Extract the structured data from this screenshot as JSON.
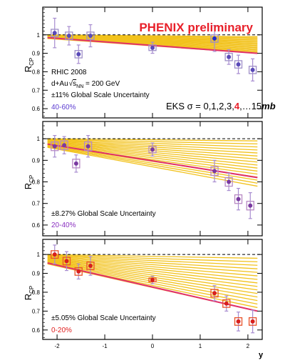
{
  "header": {
    "title": "PHENIX preliminary"
  },
  "colors": {
    "title": "#e8202a",
    "band": "#f2c21c",
    "fit": "#e0306a",
    "stat_error": "#a78cd0",
    "sys_box_top": "#9f8fc8",
    "sys_box_mid": "#b88ac4",
    "sys_box_bot": "#e9522a",
    "marker_top": "#5a4ab8",
    "marker_mid": "#7a3aa0",
    "marker_bot": "#d8201c",
    "cent_top": "#5a3ad0",
    "cent_mid": "#8a2fc0",
    "cent_bot": "#e02020",
    "highlight_marker": "#1c2bd0"
  },
  "annotations": {
    "run": "RHIC 2008",
    "system_prefix": "d+Au",
    "system_sqrt": "s",
    "system_sub": "NN",
    "system_suffix": " = 200 GeV",
    "eks_prefix": "EKS σ = 0,1,2,3,",
    "eks_highlight": "4",
    "eks_suffix": ",…15",
    "eks_unit": "mb"
  },
  "chart_data": [
    {
      "type": "scatter",
      "ylabel_main": "R",
      "ylabel_sub": "CP",
      "xlim": [
        -2.3,
        2.3
      ],
      "ylim": [
        0.55,
        1.15
      ],
      "yticks": [
        0.6,
        0.7,
        0.8,
        0.9,
        1.0
      ],
      "ytick_labels": [
        "0.6",
        "0.7",
        "0.8",
        "0.9",
        "1"
      ],
      "reference_line": 1.0,
      "global_uncertainty": "±11% Global Scale Uncertainty",
      "centrality": "40-60%",
      "fit_line": {
        "x": [
          -2.2,
          2.2
        ],
        "y": [
          0.985,
          0.9
        ]
      },
      "eks_bands": {
        "x": [
          -2.2,
          2.2
        ],
        "y_start": [
          1.0,
          0.98
        ],
        "y_end": [
          0.99,
          0.9
        ]
      },
      "points": [
        {
          "x": -2.05,
          "y": 1.01,
          "stat": 0.08,
          "sys": 0.02
        },
        {
          "x": -1.75,
          "y": 0.995,
          "stat": 0.05,
          "sys": 0.02
        },
        {
          "x": -1.55,
          "y": 0.895,
          "stat": 0.05,
          "sys": 0.02
        },
        {
          "x": -1.3,
          "y": 0.995,
          "stat": 0.06,
          "sys": 0.02
        },
        {
          "x": 0.0,
          "y": 0.93,
          "stat": 0.03,
          "sys": 0.015
        },
        {
          "x": 1.3,
          "y": 0.98,
          "stat": 0.07,
          "sys": 0.02,
          "highlight": true
        },
        {
          "x": 1.6,
          "y": 0.88,
          "stat": 0.04,
          "sys": 0.02
        },
        {
          "x": 1.8,
          "y": 0.84,
          "stat": 0.05,
          "sys": 0.02
        },
        {
          "x": 2.1,
          "y": 0.81,
          "stat": 0.06,
          "sys": 0.02
        }
      ]
    },
    {
      "type": "scatter",
      "ylabel_main": "R",
      "ylabel_sub": "CP",
      "xlim": [
        -2.3,
        2.3
      ],
      "ylim": [
        0.55,
        1.08
      ],
      "yticks": [
        0.6,
        0.7,
        0.8,
        0.9,
        1.0
      ],
      "ytick_labels": [
        "0.6",
        "0.7",
        "0.8",
        "0.9",
        "1"
      ],
      "reference_line": 1.0,
      "global_uncertainty": "±8.27% Global Scale Uncertainty",
      "centrality": "20-40%",
      "fit_line": {
        "x": [
          -2.2,
          2.2
        ],
        "y": [
          0.975,
          0.82
        ]
      },
      "eks_bands": {
        "x": [
          -2.2,
          2.2
        ],
        "y_start": [
          1.0,
          0.96
        ],
        "y_end": [
          0.99,
          0.78
        ]
      },
      "points": [
        {
          "x": -2.05,
          "y": 0.965,
          "stat": 0.05,
          "sys": 0.02
        },
        {
          "x": -1.85,
          "y": 0.97,
          "stat": 0.04,
          "sys": 0.02
        },
        {
          "x": -1.6,
          "y": 0.885,
          "stat": 0.04,
          "sys": 0.02
        },
        {
          "x": -1.35,
          "y": 0.965,
          "stat": 0.05,
          "sys": 0.02
        },
        {
          "x": 0.0,
          "y": 0.95,
          "stat": 0.03,
          "sys": 0.015
        },
        {
          "x": 1.3,
          "y": 0.85,
          "stat": 0.05,
          "sys": 0.02
        },
        {
          "x": 1.6,
          "y": 0.8,
          "stat": 0.04,
          "sys": 0.02
        },
        {
          "x": 1.8,
          "y": 0.72,
          "stat": 0.05,
          "sys": 0.02
        },
        {
          "x": 2.05,
          "y": 0.69,
          "stat": 0.06,
          "sys": 0.02
        }
      ]
    },
    {
      "type": "scatter",
      "ylabel_main": "R",
      "ylabel_sub": "CP",
      "xlabel": "y",
      "xlim": [
        -2.3,
        2.3
      ],
      "ylim": [
        0.55,
        1.08
      ],
      "xticks": [
        -2,
        -1,
        0,
        1,
        2
      ],
      "xtick_labels": [
        "-2",
        "-1",
        "0",
        "1",
        "2"
      ],
      "yticks": [
        0.6,
        0.7,
        0.8,
        0.9,
        1.0
      ],
      "ytick_labels": [
        "0.6",
        "0.7",
        "0.8",
        "0.9",
        "1"
      ],
      "reference_line": 1.0,
      "global_uncertainty": "±5.05% Global Scale Uncertainty",
      "centrality": "0-20%",
      "fit_line": {
        "x": [
          -2.2,
          2.2
        ],
        "y": [
          0.955,
          0.7
        ]
      },
      "eks_bands": {
        "x": [
          -2.2,
          2.2
        ],
        "y_start": [
          1.0,
          0.95
        ],
        "y_end": [
          0.98,
          0.7
        ]
      },
      "points": [
        {
          "x": -2.05,
          "y": 1.0,
          "stat": 0.05,
          "sys": 0.02
        },
        {
          "x": -1.8,
          "y": 0.965,
          "stat": 0.05,
          "sys": 0.02
        },
        {
          "x": -1.55,
          "y": 0.91,
          "stat": 0.04,
          "sys": 0.02
        },
        {
          "x": -1.3,
          "y": 0.94,
          "stat": 0.05,
          "sys": 0.02
        },
        {
          "x": 0.0,
          "y": 0.865,
          "stat": 0.02,
          "sys": 0.01
        },
        {
          "x": 1.3,
          "y": 0.795,
          "stat": 0.04,
          "sys": 0.02
        },
        {
          "x": 1.55,
          "y": 0.74,
          "stat": 0.04,
          "sys": 0.02
        },
        {
          "x": 1.8,
          "y": 0.645,
          "stat": 0.05,
          "sys": 0.02
        },
        {
          "x": 2.1,
          "y": 0.645,
          "stat": 0.06,
          "sys": 0.02
        }
      ]
    }
  ]
}
